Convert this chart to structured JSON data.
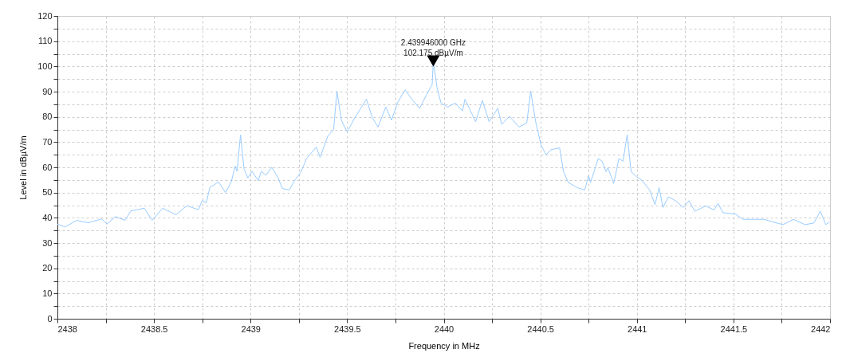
{
  "chart_data": {
    "type": "line",
    "xlabel": "Frequency in MHz",
    "ylabel": "Level in dBµV/m",
    "x": [
      2438.0,
      2438.04,
      2438.1,
      2438.16,
      2438.23,
      2438.256,
      2438.3,
      2438.35,
      2438.38,
      2438.45,
      2438.49,
      2438.545,
      2438.614,
      2438.67,
      2438.73,
      2438.75,
      2438.77,
      2438.79,
      2438.835,
      2438.87,
      2438.9,
      2438.92,
      2438.93,
      2438.948,
      2438.966,
      2438.986,
      2439.007,
      2439.04,
      2439.055,
      2439.08,
      2439.11,
      2439.14,
      2439.165,
      2439.2,
      2439.23,
      2439.26,
      2439.29,
      2439.34,
      2439.36,
      2439.4,
      2439.43,
      2439.447,
      2439.47,
      2439.5,
      2439.54,
      2439.6,
      2439.63,
      2439.66,
      2439.7,
      2439.73,
      2439.76,
      2439.8,
      2439.84,
      2439.875,
      2439.91,
      2439.94,
      2439.946,
      2439.965,
      2439.986,
      2440.02,
      2440.06,
      2440.097,
      2440.11,
      2440.165,
      2440.2,
      2440.235,
      2440.28,
      2440.3,
      2440.34,
      2440.39,
      2440.43,
      2440.45,
      2440.476,
      2440.504,
      2440.53,
      2440.555,
      2440.6,
      2440.62,
      2440.645,
      2440.69,
      2440.73,
      2440.75,
      2440.76,
      2440.8,
      2440.82,
      2440.84,
      2440.85,
      2440.88,
      2440.907,
      2440.928,
      2440.95,
      2440.97,
      2441.0,
      2441.025,
      2441.066,
      2441.094,
      2441.115,
      2441.135,
      2441.163,
      2441.2,
      2441.24,
      2441.27,
      2441.3,
      2441.356,
      2441.4,
      2441.42,
      2441.446,
      2441.51,
      2441.55,
      2441.605,
      2441.66,
      2441.7,
      2441.757,
      2441.81,
      2441.87,
      2441.916,
      2441.95,
      2441.978,
      2441.998
    ],
    "series": [
      {
        "color": "#99ccff",
        "values": [
          37.5,
          36.4,
          39,
          38,
          39.6,
          37.5,
          40.5,
          39,
          42.7,
          43.8,
          39,
          43.8,
          41.2,
          44.8,
          43.2,
          46.9,
          45.9,
          52.1,
          54.2,
          50,
          54.2,
          60.5,
          58.4,
          72.9,
          59.5,
          55.8,
          58.4,
          54.8,
          58.4,
          56.9,
          60,
          56.2,
          51.6,
          51,
          55,
          58,
          63.5,
          68,
          64,
          72.4,
          75,
          90.2,
          78.7,
          74,
          79.7,
          87,
          79.7,
          76,
          83.9,
          78.7,
          85.5,
          90.7,
          86.5,
          83.4,
          88.6,
          92.8,
          102.175,
          91.7,
          85.5,
          83.9,
          85.5,
          82.3,
          87,
          78.1,
          86.5,
          78.1,
          83.4,
          77,
          80.2,
          76,
          77.6,
          90.2,
          78.1,
          68.7,
          65,
          67,
          67.7,
          58.3,
          54,
          52,
          51,
          56.7,
          54,
          63.5,
          62.4,
          58.3,
          59.8,
          53.6,
          63.5,
          62.4,
          72.9,
          58.3,
          56.2,
          55,
          51,
          45.2,
          52,
          44.1,
          48.3,
          46.8,
          44.1,
          46.8,
          42.6,
          44.7,
          43.1,
          45.7,
          42,
          41.5,
          39.4,
          39.4,
          39.4,
          38.4,
          37.3,
          39.4,
          37.3,
          37.9,
          42.6,
          37.3,
          38.4
        ]
      }
    ],
    "xlim": [
      2438,
      2442
    ],
    "xticks": [
      2438,
      {
        "value": 2438.25,
        "label": null
      },
      2438.5,
      {
        "value": 2438.75,
        "label": null
      },
      2439,
      {
        "value": 2439.25,
        "label": null
      },
      2439.5,
      {
        "value": 2439.75,
        "label": null
      },
      2440,
      {
        "value": 2440.25,
        "label": null
      },
      2440.5,
      {
        "value": 2440.75,
        "label": null
      },
      2441,
      {
        "value": 2441.25,
        "label": null
      },
      2441.5,
      {
        "value": 2441.75,
        "label": null
      },
      2442
    ],
    "ylim": [
      0,
      120
    ],
    "yticks": [
      0,
      {
        "value": 5,
        "label": null
      },
      10,
      {
        "value": 15,
        "label": null
      },
      20,
      {
        "value": 25,
        "label": null
      },
      30,
      {
        "value": 35,
        "label": null
      },
      40,
      {
        "value": 45,
        "label": null
      },
      50,
      {
        "value": 55,
        "label": null
      },
      60,
      {
        "value": 65,
        "label": null
      },
      70,
      {
        "value": 75,
        "label": null
      },
      80,
      {
        "value": 85,
        "label": null
      },
      90,
      {
        "value": 95,
        "label": null
      },
      100,
      {
        "value": 105,
        "label": null
      },
      110,
      {
        "value": 115,
        "label": null
      },
      120
    ],
    "annotations": [
      {
        "text": "2.439946000 GHz\n102.175 dBµV/m",
        "x": 2439.946,
        "y": 102.175
      }
    ],
    "grid": true,
    "marker": "none",
    "line_style": "solid"
  }
}
